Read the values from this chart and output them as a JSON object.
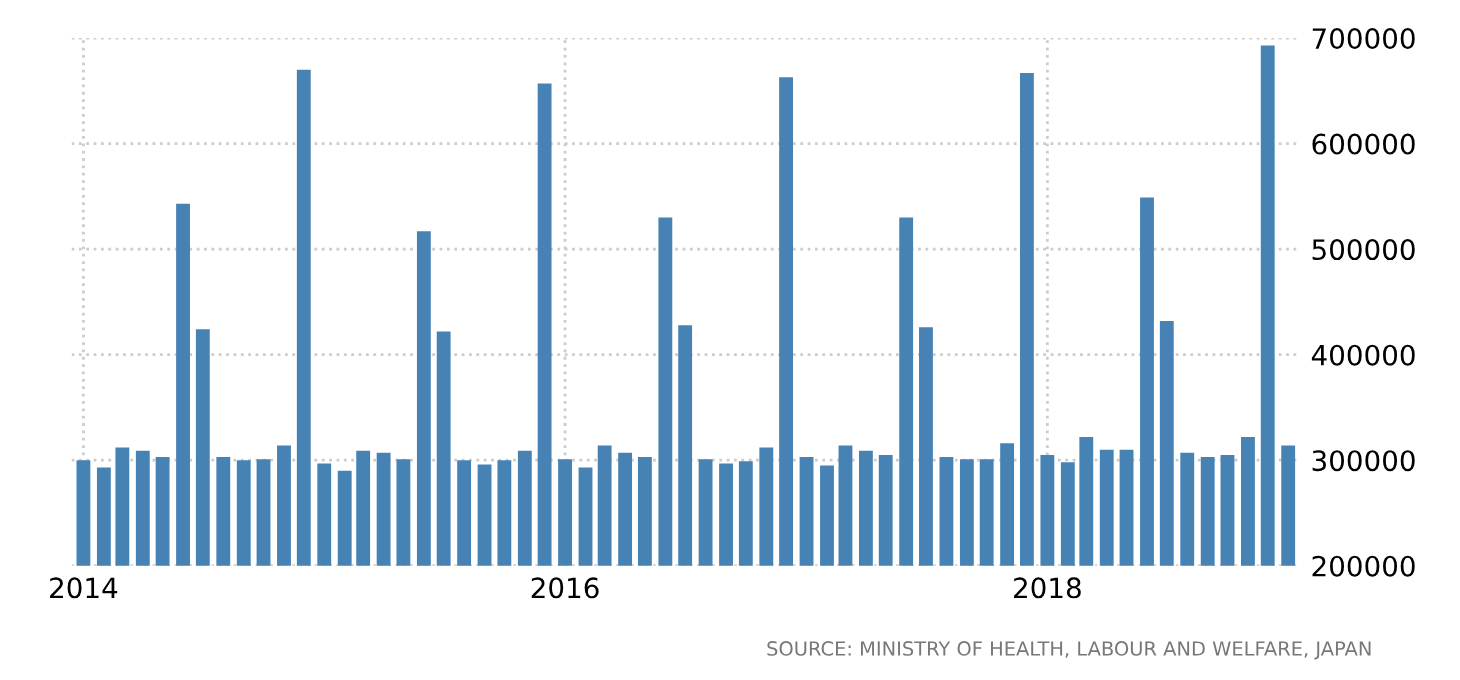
{
  "chart_data": {
    "type": "bar",
    "x": [
      "2014-01",
      "2014-02",
      "2014-03",
      "2014-04",
      "2014-05",
      "2014-06",
      "2014-07",
      "2014-08",
      "2014-09",
      "2014-10",
      "2014-11",
      "2014-12",
      "2015-01",
      "2015-02",
      "2015-03",
      "2015-04",
      "2015-05",
      "2015-06",
      "2015-07",
      "2015-08",
      "2015-09",
      "2015-10",
      "2015-11",
      "2015-12",
      "2016-01",
      "2016-02",
      "2016-03",
      "2016-04",
      "2016-05",
      "2016-06",
      "2016-07",
      "2016-08",
      "2016-09",
      "2016-10",
      "2016-11",
      "2016-12",
      "2017-01",
      "2017-02",
      "2017-03",
      "2017-04",
      "2017-05",
      "2017-06",
      "2017-07",
      "2017-08",
      "2017-09",
      "2017-10",
      "2017-11",
      "2017-12",
      "2018-01",
      "2018-02",
      "2018-03",
      "2018-04",
      "2018-05",
      "2018-06",
      "2018-07",
      "2018-08",
      "2018-09",
      "2018-10",
      "2018-11",
      "2018-12",
      "2019-01"
    ],
    "values": [
      300000,
      293000,
      312000,
      309000,
      303000,
      543000,
      424000,
      303000,
      300000,
      301000,
      314000,
      670000,
      297000,
      290000,
      309000,
      307000,
      301000,
      517000,
      422000,
      300000,
      296000,
      300000,
      309000,
      657000,
      301000,
      293000,
      314000,
      307000,
      303000,
      530000,
      428000,
      301000,
      297000,
      299000,
      312000,
      663000,
      303000,
      295000,
      314000,
      309000,
      305000,
      530000,
      426000,
      303000,
      301000,
      301000,
      316000,
      667000,
      305000,
      298000,
      322000,
      310000,
      310000,
      549000,
      432000,
      307000,
      303000,
      305000,
      322000,
      693000,
      314000
    ],
    "color": "#4682b4",
    "xlim": [
      "2013-12-14",
      "2019-01-18"
    ],
    "xticks": [
      {
        "value": "2014-01",
        "label": "2014"
      },
      {
        "value": "2016-01",
        "label": "2016"
      },
      {
        "value": "2018-01",
        "label": "2018"
      }
    ],
    "ylim": [
      200000,
      700000
    ],
    "yticks": [
      200000,
      300000,
      400000,
      500000,
      600000,
      700000
    ],
    "grid": true,
    "annotations": [
      "SOURCE: MINISTRY OF HEALTH, LABOUR AND WELFARE, JAPAN"
    ]
  }
}
